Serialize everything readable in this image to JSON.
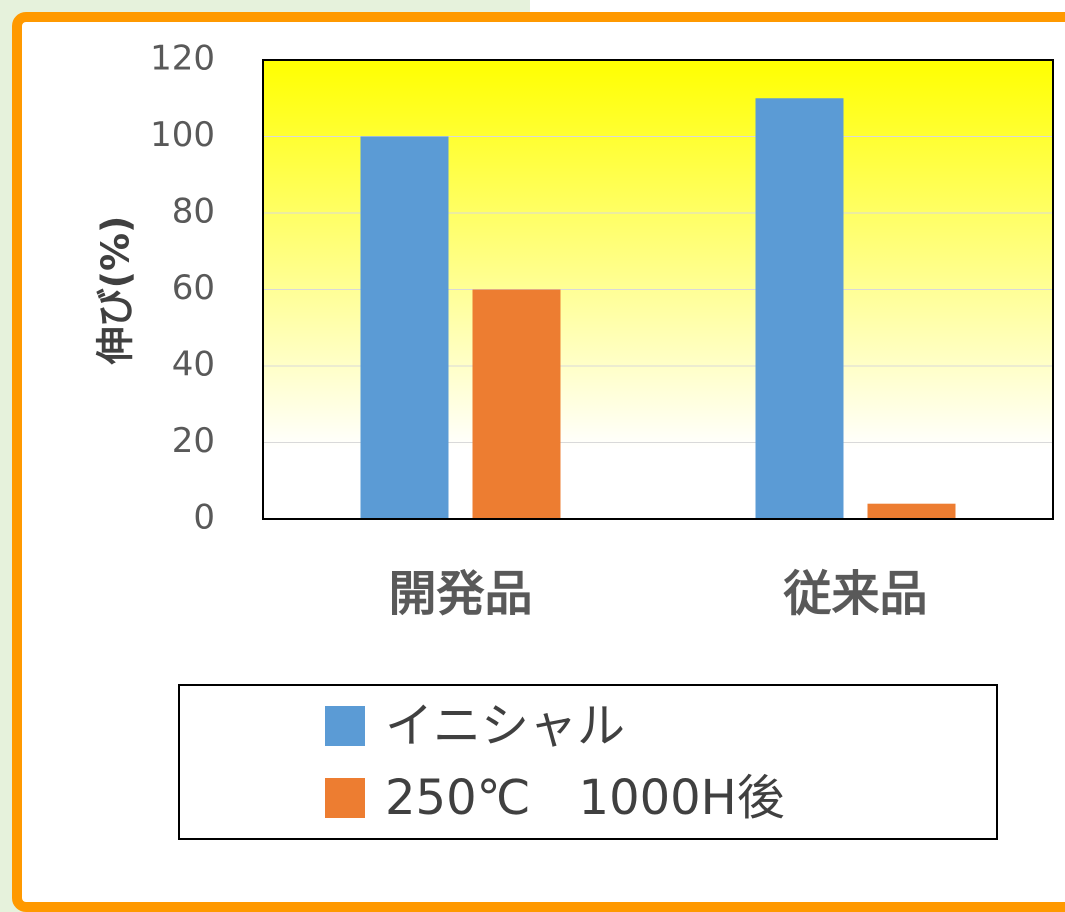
{
  "chart_data": {
    "type": "bar",
    "categories": [
      "開発品",
      "従来品"
    ],
    "series": [
      {
        "name": "イニシャル",
        "values": [
          100,
          110
        ],
        "color": "#5b9bd5"
      },
      {
        "name": "250℃　1000H後",
        "values": [
          60,
          4
        ],
        "color": "#ed7d31"
      }
    ],
    "ylabel": "伸び(%)",
    "ylim": [
      0,
      120
    ],
    "yticks": [
      0,
      20,
      40,
      60,
      80,
      100,
      120
    ],
    "grid": true,
    "legend_position": "bottom",
    "plot_background": "yellow-to-white gradient"
  }
}
